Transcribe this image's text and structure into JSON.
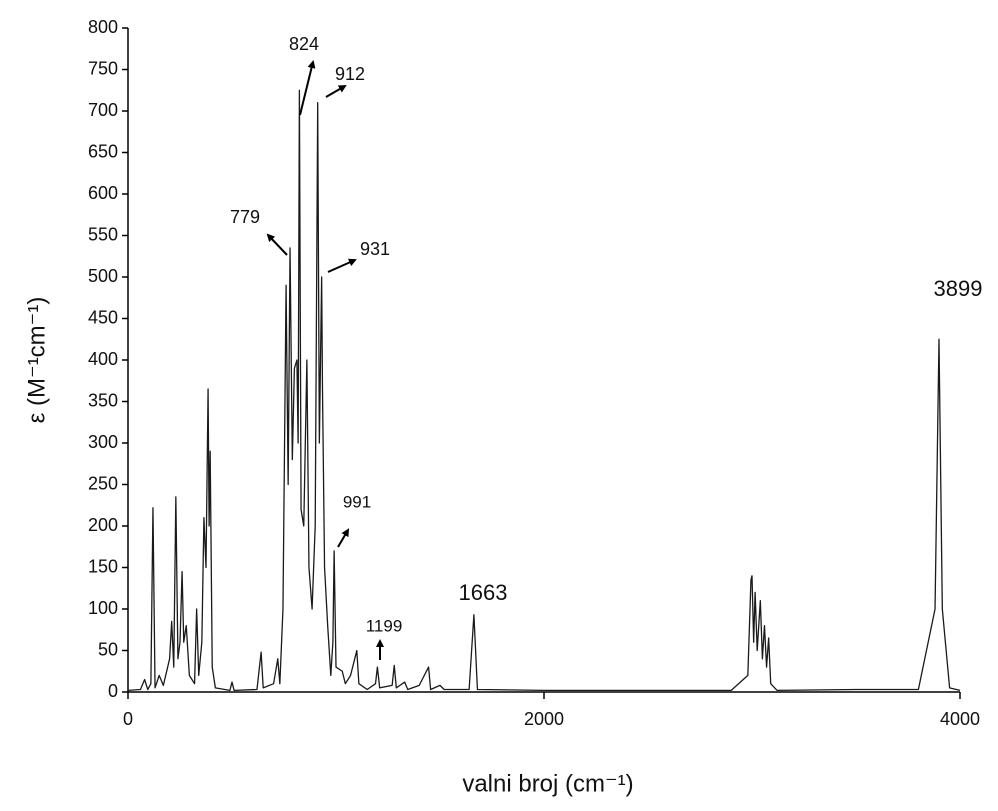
{
  "chart_data": {
    "type": "line",
    "xlabel": "valni broj (cm⁻¹)",
    "ylabel": "ε (M⁻¹cm⁻¹)",
    "xlim": [
      0,
      4000
    ],
    "ylim": [
      0,
      800
    ],
    "xticks": [
      0,
      2000,
      4000
    ],
    "yticks": [
      0,
      50,
      100,
      150,
      200,
      250,
      300,
      350,
      400,
      450,
      500,
      550,
      600,
      650,
      700,
      750,
      800
    ],
    "color": "#1a1a1a",
    "annotations": [
      "824",
      "912",
      "779",
      "931",
      "991",
      "1199",
      "1663",
      "3899"
    ],
    "x": [
      0,
      60,
      80,
      95,
      110,
      120,
      130,
      150,
      170,
      200,
      210,
      220,
      230,
      240,
      250,
      260,
      268,
      280,
      295,
      320,
      330,
      340,
      355,
      365,
      375,
      385,
      390,
      395,
      405,
      420,
      490,
      500,
      510,
      620,
      640,
      650,
      700,
      720,
      730,
      745,
      760,
      770,
      779,
      790,
      800,
      812,
      818,
      824,
      832,
      845,
      860,
      870,
      885,
      900,
      912,
      920,
      931,
      935,
      945,
      960,
      975,
      985,
      991,
      1000,
      1030,
      1045,
      1070,
      1090,
      1100,
      1110,
      1150,
      1190,
      1199,
      1210,
      1270,
      1280,
      1290,
      1330,
      1345,
      1400,
      1445,
      1455,
      1500,
      1520,
      1640,
      1663,
      1680,
      2000,
      2900,
      2980,
      2995,
      3000,
      3008,
      3015,
      3025,
      3040,
      3050,
      3060,
      3070,
      3080,
      3090,
      3120,
      3500,
      3800,
      3880,
      3899,
      3915,
      3950,
      4000
    ],
    "y": [
      2,
      3,
      15,
      3,
      10,
      222,
      5,
      20,
      8,
      40,
      85,
      30,
      235,
      40,
      60,
      145,
      60,
      80,
      20,
      10,
      100,
      20,
      60,
      210,
      150,
      365,
      200,
      290,
      30,
      5,
      2,
      12,
      2,
      3,
      48,
      5,
      10,
      40,
      10,
      100,
      490,
      250,
      535,
      280,
      390,
      400,
      300,
      725,
      220,
      200,
      400,
      150,
      100,
      200,
      710,
      300,
      500,
      365,
      150,
      80,
      20,
      60,
      170,
      30,
      25,
      10,
      20,
      40,
      50,
      10,
      3,
      10,
      30,
      5,
      8,
      32,
      5,
      12,
      3,
      8,
      30,
      3,
      8,
      3,
      3,
      93,
      3,
      2,
      2,
      20,
      135,
      140,
      60,
      120,
      50,
      110,
      40,
      80,
      30,
      65,
      10,
      2,
      3,
      3,
      100,
      425,
      100,
      5,
      2
    ]
  }
}
